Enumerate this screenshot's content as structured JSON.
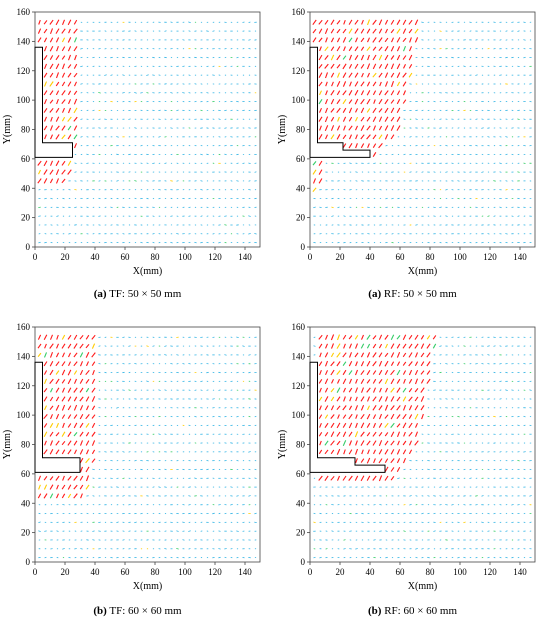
{
  "panels": [
    {
      "caption_letter": "(a)",
      "caption_text": "TF:  50 × 50 mm",
      "chart_data": {
        "type": "scatter",
        "description": "velocity vector field (PIV)",
        "xlabel": "X(mm)",
        "ylabel": "Y(mm)",
        "xlim": [
          0,
          150
        ],
        "ylim": [
          0,
          160
        ],
        "xticks": [
          0,
          20,
          40,
          60,
          80,
          100,
          120,
          140
        ],
        "yticks": [
          0,
          20,
          40,
          60,
          80,
          100,
          120,
          140,
          160
        ],
        "grid": false,
        "obstacle_outline": [
          [
            0,
            136
          ],
          [
            5,
            136
          ],
          [
            5,
            71
          ],
          [
            25,
            71
          ],
          [
            25,
            61
          ],
          [
            0,
            61
          ]
        ],
        "fast_region": [
          [
            3,
            158
          ],
          [
            30,
            158
          ],
          [
            28,
            70
          ],
          [
            22,
            45
          ],
          [
            3,
            40
          ]
        ],
        "colors": {
          "fast": "#ff1a1a",
          "mid": "#ffcc00",
          "slow": "#33cc66",
          "still": "#33b5e5"
        }
      }
    },
    {
      "caption_letter": "(a)",
      "caption_text": "RF:   50 × 50 mm",
      "chart_data": {
        "type": "scatter",
        "description": "velocity vector field (PIV)",
        "xlabel": "X(mm)",
        "ylabel": "Y(mm)",
        "xlim": [
          0,
          150
        ],
        "ylim": [
          0,
          160
        ],
        "xticks": [
          0,
          20,
          40,
          60,
          80,
          100,
          120,
          140
        ],
        "yticks": [
          0,
          20,
          40,
          60,
          80,
          100,
          120,
          140,
          160
        ],
        "grid": false,
        "obstacle_outline": [
          [
            0,
            136
          ],
          [
            5,
            136
          ],
          [
            5,
            71
          ],
          [
            22,
            71
          ],
          [
            22,
            66
          ],
          [
            40,
            66
          ],
          [
            40,
            61
          ],
          [
            0,
            61
          ]
        ],
        "fast_region": [
          [
            3,
            158
          ],
          [
            75,
            158
          ],
          [
            60,
            80
          ],
          [
            45,
            62
          ],
          [
            10,
            60
          ],
          [
            6,
            36
          ],
          [
            3,
            36
          ]
        ],
        "colors": {
          "fast": "#ff1a1a",
          "mid": "#ffcc00",
          "slow": "#33cc66",
          "still": "#33b5e5"
        }
      }
    },
    {
      "caption_letter": "(b)",
      "caption_text": "TF: 60 × 60 mm",
      "chart_data": {
        "type": "scatter",
        "description": "velocity vector field (PIV)",
        "xlabel": "X(mm)",
        "ylabel": "Y(mm)",
        "xlim": [
          0,
          150
        ],
        "ylim": [
          0,
          160
        ],
        "xticks": [
          0,
          20,
          40,
          60,
          80,
          100,
          120,
          140
        ],
        "yticks": [
          0,
          20,
          40,
          60,
          80,
          100,
          120,
          140,
          160
        ],
        "grid": false,
        "obstacle_outline": [
          [
            0,
            136
          ],
          [
            5,
            136
          ],
          [
            5,
            71
          ],
          [
            30,
            71
          ],
          [
            30,
            61
          ],
          [
            0,
            61
          ]
        ],
        "fast_region": [
          [
            3,
            158
          ],
          [
            42,
            158
          ],
          [
            40,
            70
          ],
          [
            34,
            42
          ],
          [
            3,
            40
          ]
        ],
        "colors": {
          "fast": "#ff1a1a",
          "mid": "#ffcc00",
          "slow": "#33cc66",
          "still": "#33b5e5"
        }
      }
    },
    {
      "caption_letter": "(b)",
      "caption_text": "RF: 60 × 60 mm",
      "chart_data": {
        "type": "scatter",
        "description": "velocity vector field (PIV)",
        "xlabel": "X(mm)",
        "ylabel": "Y(mm)",
        "xlim": [
          0,
          150
        ],
        "ylim": [
          0,
          160
        ],
        "xticks": [
          0,
          20,
          40,
          60,
          80,
          100,
          120,
          140
        ],
        "yticks": [
          0,
          20,
          40,
          60,
          80,
          100,
          120,
          140,
          160
        ],
        "grid": false,
        "obstacle_outline": [
          [
            0,
            136
          ],
          [
            5,
            136
          ],
          [
            5,
            71
          ],
          [
            30,
            71
          ],
          [
            30,
            66
          ],
          [
            50,
            66
          ],
          [
            50,
            61
          ],
          [
            0,
            61
          ]
        ],
        "fast_region": [
          [
            3,
            158
          ],
          [
            85,
            158
          ],
          [
            72,
            80
          ],
          [
            55,
            55
          ],
          [
            5,
            52
          ]
        ],
        "colors": {
          "fast": "#ff1a1a",
          "mid": "#ffcc00",
          "slow": "#33cc66",
          "still": "#33b5e5"
        }
      }
    }
  ]
}
